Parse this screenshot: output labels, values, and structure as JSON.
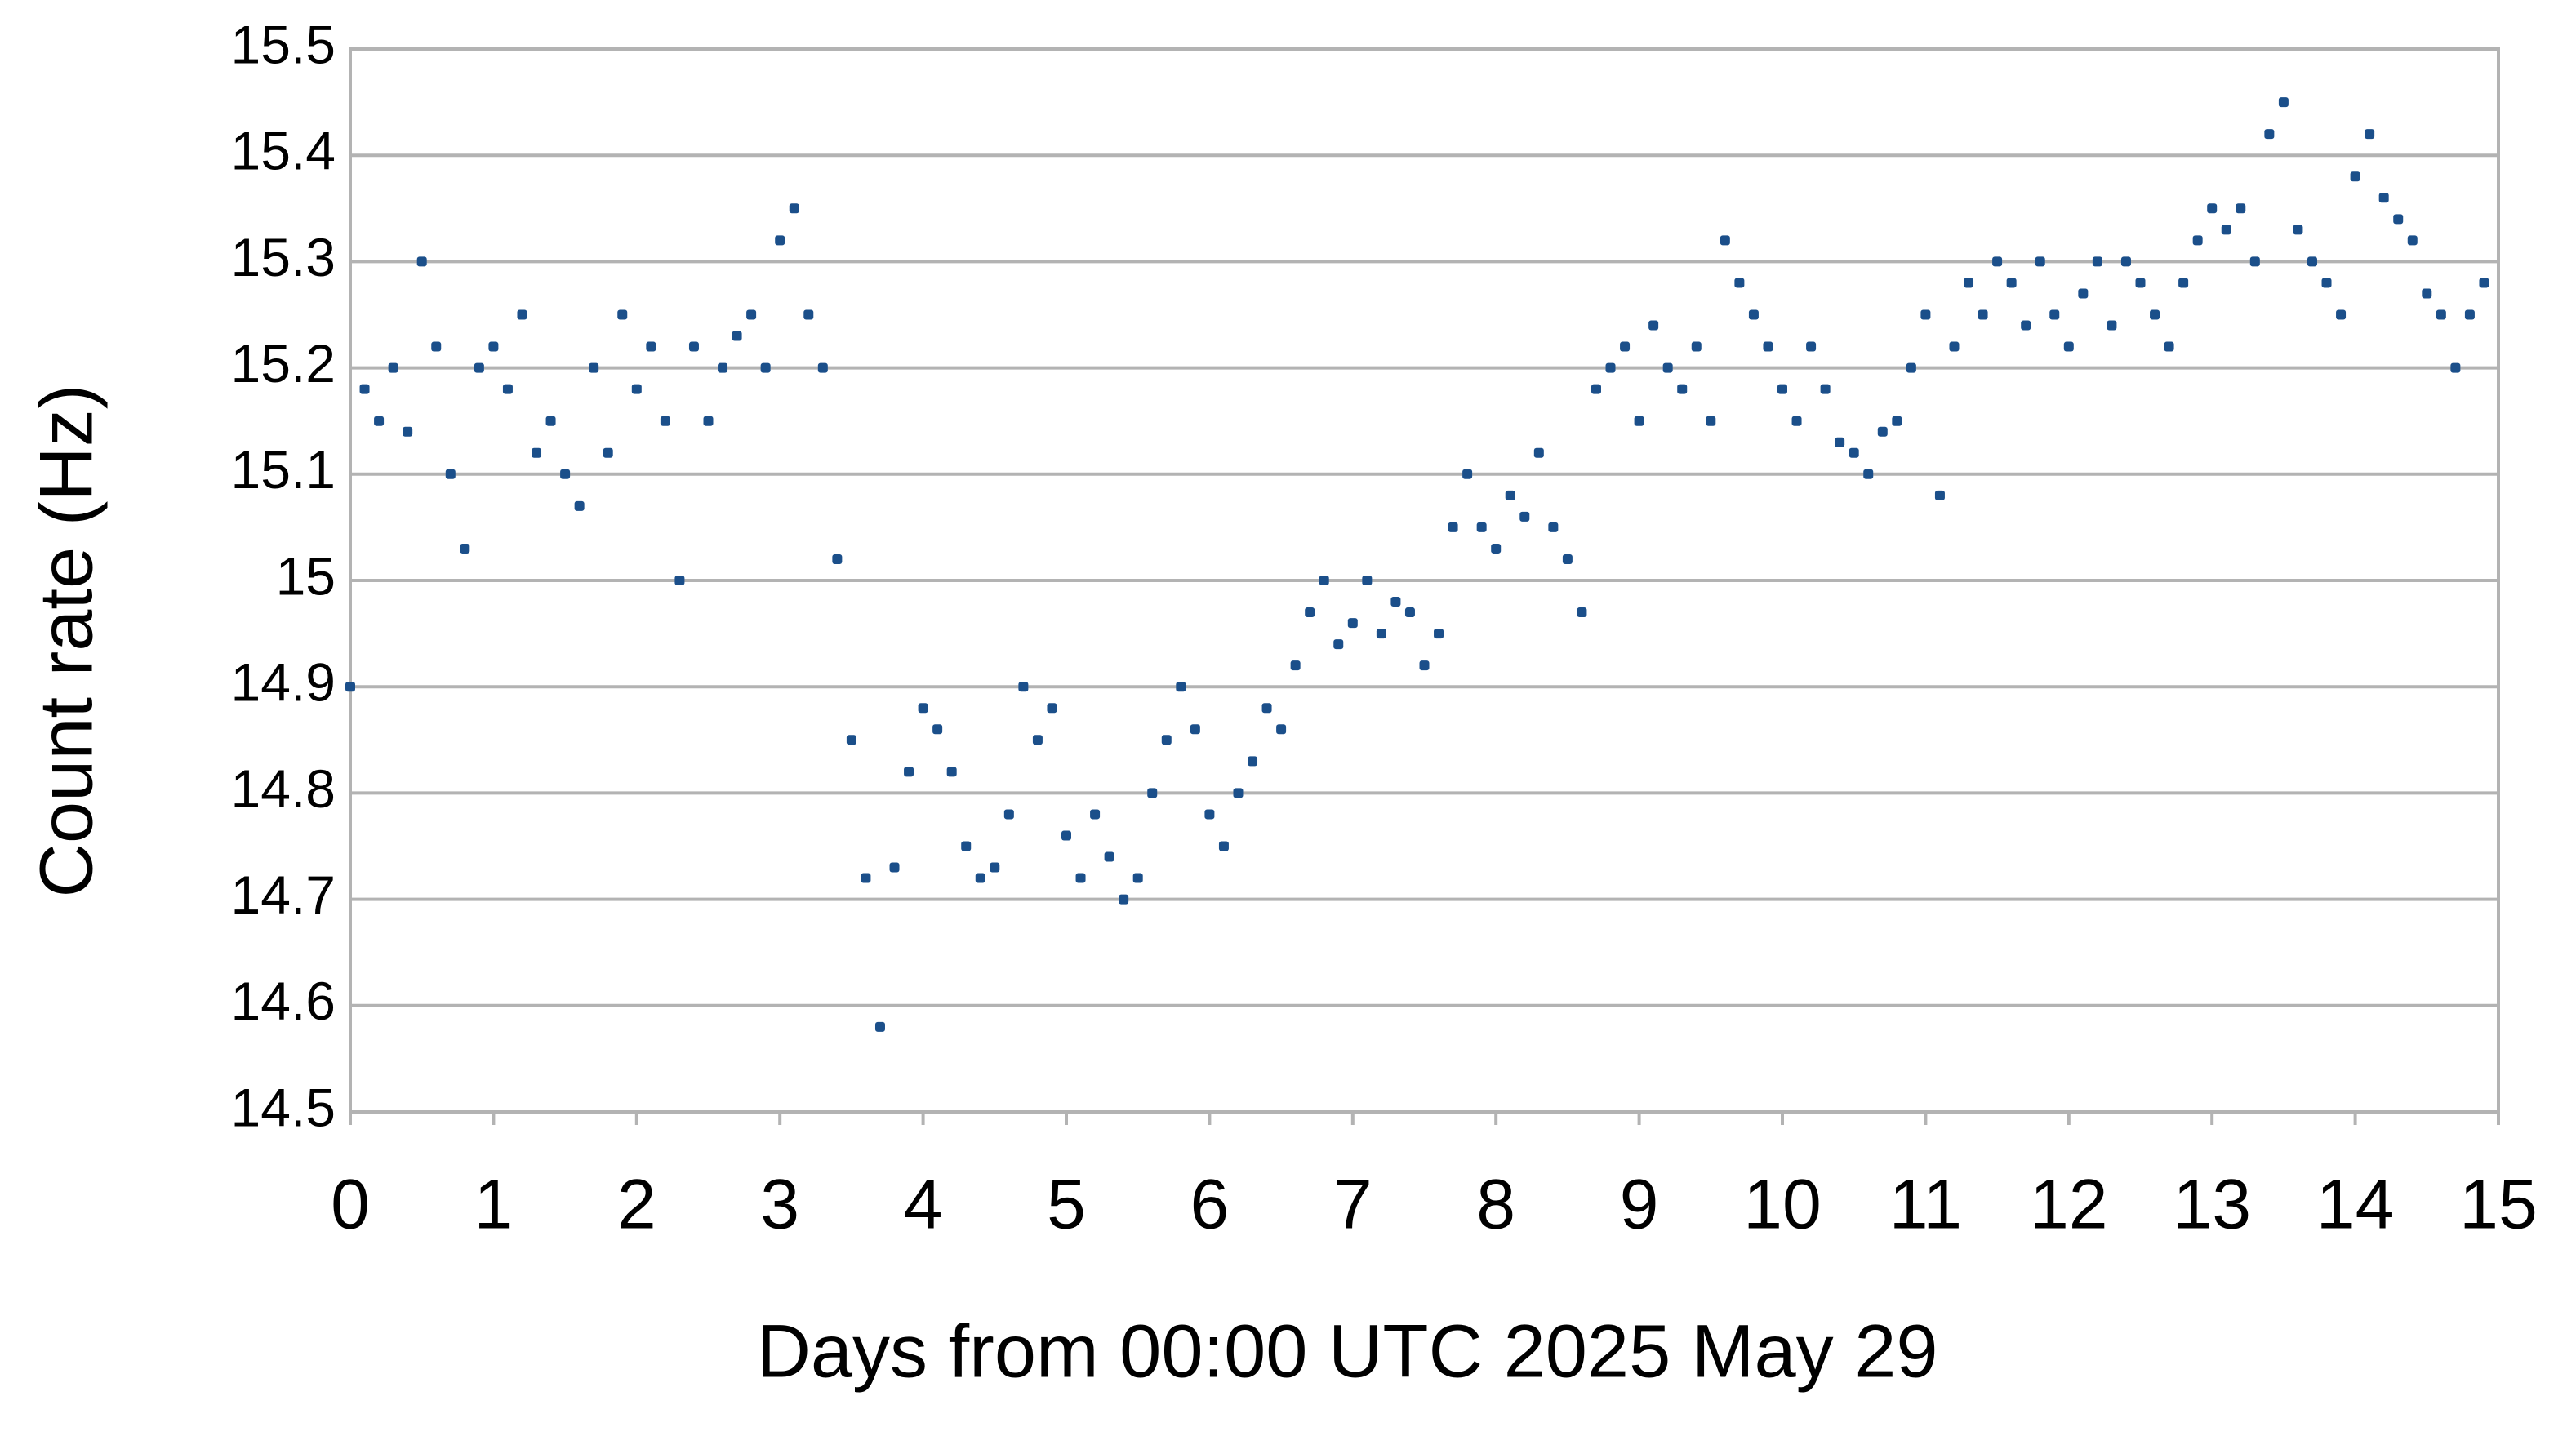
{
  "chart_data": {
    "type": "scatter",
    "xlabel": "Days from 00:00 UTC 2025 May 29",
    "ylabel": "Count rate (Hz)",
    "color": "#1b4f8a",
    "xlim": [
      0,
      15
    ],
    "xticks": [
      0,
      1,
      2,
      3,
      4,
      5,
      6,
      7,
      8,
      9,
      10,
      11,
      12,
      13,
      14,
      15
    ],
    "ylim": [
      14.5,
      15.5
    ],
    "yticks": [
      14.5,
      14.6,
      14.7,
      14.8,
      14.9,
      15,
      15.1,
      15.2,
      15.3,
      15.4,
      15.5
    ],
    "grid": true,
    "x": [
      0.0,
      0.1,
      0.2,
      0.3,
      0.4,
      0.5,
      0.6,
      0.7,
      0.8,
      0.9,
      1.0,
      1.1,
      1.2,
      1.3,
      1.4,
      1.5,
      1.6,
      1.7,
      1.8,
      1.9,
      2.0,
      2.1,
      2.2,
      2.3,
      2.4,
      2.5,
      2.6,
      2.7,
      2.8,
      2.9,
      3.0,
      3.1,
      3.2,
      3.3,
      3.4,
      3.5,
      3.6,
      3.7,
      3.8,
      3.9,
      4.0,
      4.1,
      4.2,
      4.3,
      4.4,
      4.5,
      4.6,
      4.7,
      4.8,
      4.9,
      5.0,
      5.1,
      5.2,
      5.3,
      5.4,
      5.5,
      5.6,
      5.7,
      5.8,
      5.9,
      6.0,
      6.1,
      6.2,
      6.3,
      6.4,
      6.5,
      6.6,
      6.7,
      6.8,
      6.9,
      7.0,
      7.1,
      7.2,
      7.3,
      7.4,
      7.5,
      7.6,
      7.7,
      7.8,
      7.9,
      8.0,
      8.1,
      8.2,
      8.3,
      8.4,
      8.5,
      8.6,
      8.7,
      8.8,
      8.9,
      9.0,
      9.1,
      9.2,
      9.3,
      9.4,
      9.5,
      9.6,
      9.7,
      9.8,
      9.9,
      10.0,
      10.1,
      10.2,
      10.3,
      10.4,
      10.5,
      10.6,
      10.7,
      10.8,
      10.9,
      11.0,
      11.1,
      11.2,
      11.3,
      11.4,
      11.5,
      11.6,
      11.7,
      11.8,
      11.9,
      12.0,
      12.1,
      12.2,
      12.3,
      12.4,
      12.5,
      12.6,
      12.7,
      12.8,
      12.9,
      13.0,
      13.1,
      13.2,
      13.3,
      13.4,
      13.5,
      13.6,
      13.7,
      13.8,
      13.9,
      14.0,
      14.1,
      14.2,
      14.3,
      14.4,
      14.5,
      14.6,
      14.7,
      14.8,
      14.9
    ],
    "values": [
      14.9,
      15.18,
      15.15,
      15.2,
      15.14,
      15.3,
      15.22,
      15.1,
      15.03,
      15.2,
      15.22,
      15.18,
      15.25,
      15.12,
      15.15,
      15.1,
      15.07,
      15.2,
      15.12,
      15.25,
      15.18,
      15.22,
      15.15,
      15.0,
      15.22,
      15.15,
      15.2,
      15.23,
      15.25,
      15.2,
      15.32,
      15.35,
      15.25,
      15.2,
      15.02,
      14.85,
      14.72,
      14.58,
      14.73,
      14.82,
      14.88,
      14.86,
      14.82,
      14.75,
      14.72,
      14.73,
      14.78,
      14.9,
      14.85,
      14.88,
      14.76,
      14.72,
      14.78,
      14.74,
      14.7,
      14.72,
      14.8,
      14.85,
      14.9,
      14.86,
      14.78,
      14.75,
      14.8,
      14.83,
      14.88,
      14.86,
      14.92,
      14.97,
      15.0,
      14.94,
      14.96,
      15.0,
      14.95,
      14.98,
      14.97,
      14.92,
      14.95,
      15.05,
      15.1,
      15.05,
      15.03,
      15.08,
      15.06,
      15.12,
      15.05,
      15.02,
      14.97,
      15.18,
      15.2,
      15.22,
      15.15,
      15.24,
      15.2,
      15.18,
      15.22,
      15.15,
      15.32,
      15.28,
      15.25,
      15.22,
      15.18,
      15.15,
      15.22,
      15.18,
      15.13,
      15.12,
      15.1,
      15.14,
      15.15,
      15.2,
      15.25,
      15.08,
      15.22,
      15.28,
      15.25,
      15.3,
      15.28,
      15.24,
      15.3,
      15.25,
      15.22,
      15.27,
      15.3,
      15.24,
      15.3,
      15.28,
      15.25,
      15.22,
      15.28,
      15.32,
      15.35,
      15.33,
      15.35,
      15.3,
      15.42,
      15.45,
      15.33,
      15.3,
      15.28,
      15.25,
      15.38,
      15.42,
      15.36,
      15.34,
      15.32,
      15.27,
      15.25,
      15.2,
      15.25,
      15.28
    ]
  }
}
